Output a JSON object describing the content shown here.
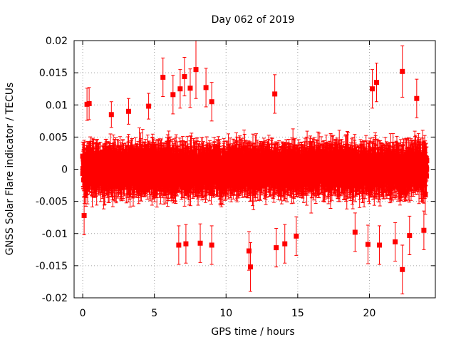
{
  "chart_data": {
    "type": "scatter",
    "title": "Day 062 of 2019",
    "xlabel": "GPS time / hours",
    "ylabel": "GNSS Solar Flare indicator / TECUs",
    "xlim": [
      -0.6,
      24.6
    ],
    "ylim": [
      -0.02,
      0.02
    ],
    "x_ticks": [
      0,
      5,
      10,
      15,
      20
    ],
    "x_tick_labels": [
      "0",
      "5",
      "10",
      "15",
      "20"
    ],
    "y_ticks": [
      -0.02,
      -0.015,
      -0.01,
      -0.005,
      0,
      0.005,
      0.01,
      0.015,
      0.02
    ],
    "y_tick_labels": [
      "-0.02",
      "-0.015",
      "-0.01",
      "-0.005",
      "0",
      "0.005",
      "0.01",
      "0.015",
      "0.02"
    ],
    "grid": true,
    "series_color": "#ff0000",
    "series": [
      {
        "name": "GNSS Solar Flare indicator (with error bars)",
        "x_range": [
          0,
          24
        ],
        "interval_hours": 0.0083333,
        "bulk_range": [
          -0.006,
          0.006
        ],
        "typical_error": 0.003,
        "notable_points": [
          {
            "x": 0.3,
            "y": 0.0101,
            "err": 0.0025
          },
          {
            "x": 0.45,
            "y": 0.0102,
            "err": 0.0025
          },
          {
            "x": 2.0,
            "y": 0.0085,
            "err": 0.002
          },
          {
            "x": 3.2,
            "y": 0.009,
            "err": 0.002
          },
          {
            "x": 4.6,
            "y": 0.0098,
            "err": 0.002
          },
          {
            "x": 5.6,
            "y": 0.0143,
            "err": 0.003
          },
          {
            "x": 6.3,
            "y": 0.0116,
            "err": 0.003
          },
          {
            "x": 6.8,
            "y": 0.0125,
            "err": 0.003
          },
          {
            "x": 7.1,
            "y": 0.0144,
            "err": 0.003
          },
          {
            "x": 7.5,
            "y": 0.0126,
            "err": 0.003
          },
          {
            "x": 7.9,
            "y": 0.0155,
            "err": 0.0045
          },
          {
            "x": 8.6,
            "y": 0.0127,
            "err": 0.003
          },
          {
            "x": 9.0,
            "y": 0.0105,
            "err": 0.003
          },
          {
            "x": 13.4,
            "y": 0.0117,
            "err": 0.003
          },
          {
            "x": 20.2,
            "y": 0.0125,
            "err": 0.003
          },
          {
            "x": 20.5,
            "y": 0.0135,
            "err": 0.003
          },
          {
            "x": 22.3,
            "y": 0.0152,
            "err": 0.004
          },
          {
            "x": 23.3,
            "y": 0.011,
            "err": 0.003
          },
          {
            "x": 6.7,
            "y": -0.0118,
            "err": 0.003
          },
          {
            "x": 7.2,
            "y": -0.0116,
            "err": 0.003
          },
          {
            "x": 8.2,
            "y": -0.0115,
            "err": 0.003
          },
          {
            "x": 9.0,
            "y": -0.0118,
            "err": 0.003
          },
          {
            "x": 11.6,
            "y": -0.0127,
            "err": 0.003
          },
          {
            "x": 11.7,
            "y": -0.0152,
            "err": 0.0038
          },
          {
            "x": 13.5,
            "y": -0.0122,
            "err": 0.003
          },
          {
            "x": 14.1,
            "y": -0.0116,
            "err": 0.003
          },
          {
            "x": 14.9,
            "y": -0.0104,
            "err": 0.003
          },
          {
            "x": 19.0,
            "y": -0.0098,
            "err": 0.003
          },
          {
            "x": 19.9,
            "y": -0.0117,
            "err": 0.003
          },
          {
            "x": 20.7,
            "y": -0.0118,
            "err": 0.003
          },
          {
            "x": 21.8,
            "y": -0.0113,
            "err": 0.003
          },
          {
            "x": 22.3,
            "y": -0.0156,
            "err": 0.0038
          },
          {
            "x": 22.8,
            "y": -0.0103,
            "err": 0.003
          },
          {
            "x": 23.8,
            "y": -0.0095,
            "err": 0.003
          },
          {
            "x": 0.1,
            "y": -0.0072,
            "err": 0.003
          },
          {
            "x": 23.9,
            "y": -0.004,
            "err": 0.003
          }
        ]
      }
    ]
  }
}
